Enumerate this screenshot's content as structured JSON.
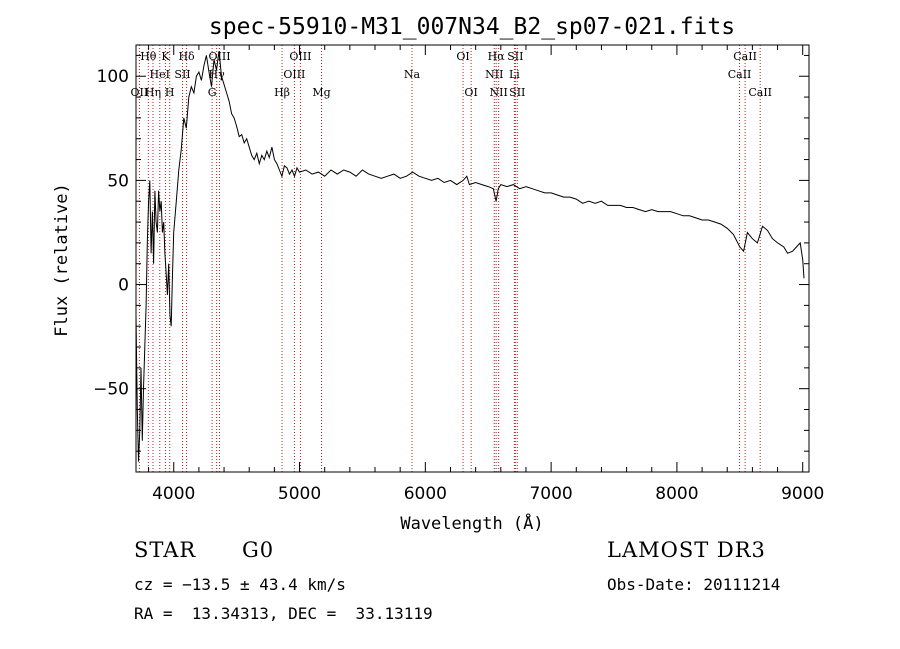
{
  "chart_data": {
    "type": "line",
    "title": "spec-55910-M31_007N34_B2_sp07-021.fits",
    "xlabel": "Wavelength (Å)",
    "ylabel": "Flux (relative)",
    "xlim": [
      3700,
      9050
    ],
    "ylim": [
      -90,
      115
    ],
    "xticks": [
      4000,
      5000,
      6000,
      7000,
      8000,
      9000
    ],
    "yticks": [
      -50,
      0,
      50,
      100
    ],
    "xtick_labels": [
      "4000",
      "5000",
      "6000",
      "7000",
      "8000",
      "9000"
    ],
    "ytick_labels": [
      "−50",
      "0",
      "50",
      "100"
    ],
    "grid": false,
    "line_color": "#000000",
    "marker_color": "#b22222",
    "spectrum": [
      [
        3700,
        -15
      ],
      [
        3710,
        -60
      ],
      [
        3720,
        -85
      ],
      [
        3730,
        -70
      ],
      [
        3740,
        -40
      ],
      [
        3750,
        -75
      ],
      [
        3760,
        -50
      ],
      [
        3770,
        -30
      ],
      [
        3780,
        -10
      ],
      [
        3790,
        20
      ],
      [
        3800,
        40
      ],
      [
        3810,
        50
      ],
      [
        3820,
        15
      ],
      [
        3830,
        35
      ],
      [
        3840,
        10
      ],
      [
        3850,
        45
      ],
      [
        3860,
        30
      ],
      [
        3870,
        25
      ],
      [
        3880,
        45
      ],
      [
        3890,
        35
      ],
      [
        3900,
        40
      ],
      [
        3910,
        25
      ],
      [
        3920,
        30
      ],
      [
        3930,
        15
      ],
      [
        3940,
        5
      ],
      [
        3950,
        -5
      ],
      [
        3960,
        10
      ],
      [
        3970,
        -15
      ],
      [
        3980,
        -20
      ],
      [
        3990,
        5
      ],
      [
        4000,
        25
      ],
      [
        4020,
        40
      ],
      [
        4040,
        55
      ],
      [
        4060,
        65
      ],
      [
        4080,
        80
      ],
      [
        4100,
        75
      ],
      [
        4120,
        90
      ],
      [
        4140,
        95
      ],
      [
        4160,
        92
      ],
      [
        4180,
        100
      ],
      [
        4200,
        102
      ],
      [
        4220,
        98
      ],
      [
        4240,
        105
      ],
      [
        4260,
        110
      ],
      [
        4280,
        102
      ],
      [
        4300,
        95
      ],
      [
        4320,
        108
      ],
      [
        4340,
        103
      ],
      [
        4360,
        112
      ],
      [
        4380,
        100
      ],
      [
        4400,
        96
      ],
      [
        4420,
        92
      ],
      [
        4440,
        88
      ],
      [
        4460,
        82
      ],
      [
        4480,
        80
      ],
      [
        4500,
        76
      ],
      [
        4520,
        71
      ],
      [
        4540,
        72
      ],
      [
        4560,
        68
      ],
      [
        4580,
        70
      ],
      [
        4600,
        66
      ],
      [
        4620,
        62
      ],
      [
        4640,
        60
      ],
      [
        4660,
        63
      ],
      [
        4680,
        58
      ],
      [
        4700,
        62
      ],
      [
        4720,
        60
      ],
      [
        4740,
        64
      ],
      [
        4760,
        61
      ],
      [
        4780,
        66
      ],
      [
        4800,
        60
      ],
      [
        4820,
        58
      ],
      [
        4840,
        55
      ],
      [
        4860,
        52
      ],
      [
        4880,
        57
      ],
      [
        4900,
        56
      ],
      [
        4920,
        53
      ],
      [
        4940,
        55
      ],
      [
        4960,
        52
      ],
      [
        4980,
        56
      ],
      [
        5000,
        54
      ],
      [
        5050,
        55
      ],
      [
        5100,
        53
      ],
      [
        5150,
        54
      ],
      [
        5200,
        52
      ],
      [
        5250,
        55
      ],
      [
        5300,
        53
      ],
      [
        5350,
        55
      ],
      [
        5400,
        54
      ],
      [
        5450,
        52
      ],
      [
        5500,
        55
      ],
      [
        5550,
        53
      ],
      [
        5600,
        52
      ],
      [
        5650,
        51
      ],
      [
        5700,
        52
      ],
      [
        5750,
        53
      ],
      [
        5800,
        51
      ],
      [
        5850,
        52
      ],
      [
        5900,
        54
      ],
      [
        5950,
        52
      ],
      [
        6000,
        51
      ],
      [
        6050,
        50
      ],
      [
        6100,
        51
      ],
      [
        6150,
        49
      ],
      [
        6200,
        50
      ],
      [
        6250,
        48
      ],
      [
        6300,
        50
      ],
      [
        6330,
        52
      ],
      [
        6350,
        48
      ],
      [
        6400,
        49
      ],
      [
        6450,
        48
      ],
      [
        6500,
        47
      ],
      [
        6540,
        46
      ],
      [
        6563,
        40
      ],
      [
        6580,
        46
      ],
      [
        6600,
        48
      ],
      [
        6650,
        47
      ],
      [
        6700,
        48
      ],
      [
        6750,
        46
      ],
      [
        6800,
        47
      ],
      [
        6850,
        46
      ],
      [
        6900,
        45
      ],
      [
        6950,
        44
      ],
      [
        7000,
        44
      ],
      [
        7050,
        43
      ],
      [
        7100,
        42
      ],
      [
        7150,
        42
      ],
      [
        7200,
        41
      ],
      [
        7250,
        39
      ],
      [
        7300,
        40
      ],
      [
        7350,
        39
      ],
      [
        7400,
        40
      ],
      [
        7450,
        38
      ],
      [
        7500,
        38
      ],
      [
        7550,
        38
      ],
      [
        7600,
        37
      ],
      [
        7650,
        37
      ],
      [
        7700,
        36
      ],
      [
        7750,
        35
      ],
      [
        7800,
        36
      ],
      [
        7850,
        35
      ],
      [
        7900,
        35
      ],
      [
        7950,
        35
      ],
      [
        8000,
        34
      ],
      [
        8050,
        33
      ],
      [
        8100,
        33
      ],
      [
        8150,
        32
      ],
      [
        8200,
        31
      ],
      [
        8250,
        31
      ],
      [
        8300,
        30
      ],
      [
        8350,
        29
      ],
      [
        8400,
        27
      ],
      [
        8450,
        24
      ],
      [
        8500,
        18
      ],
      [
        8530,
        16
      ],
      [
        8560,
        25
      ],
      [
        8600,
        22
      ],
      [
        8640,
        20
      ],
      [
        8680,
        28
      ],
      [
        8720,
        26
      ],
      [
        8760,
        22
      ],
      [
        8800,
        20
      ],
      [
        8850,
        18
      ],
      [
        8880,
        15
      ],
      [
        8920,
        16
      ],
      [
        8950,
        18
      ],
      [
        8980,
        20
      ],
      [
        9000,
        12
      ],
      [
        9010,
        3
      ]
    ],
    "line_markers": [
      {
        "label": "Hθ",
        "wave": 3798,
        "row": 1
      },
      {
        "label": "OII",
        "wave": 3727,
        "row": 3
      },
      {
        "label": "Hη",
        "wave": 3835,
        "row": 3
      },
      {
        "label": "HeI",
        "wave": 3889,
        "row": 2
      },
      {
        "label": "K",
        "wave": 3934,
        "row": 1
      },
      {
        "label": "H",
        "wave": 3968,
        "row": 3
      },
      {
        "label": "SII",
        "wave": 4070,
        "row": 2
      },
      {
        "label": "Hδ",
        "wave": 4102,
        "row": 1
      },
      {
        "label": "G",
        "wave": 4305,
        "row": 3
      },
      {
        "label": "Hγ",
        "wave": 4341,
        "row": 2
      },
      {
        "label": "OIII",
        "wave": 4364,
        "row": 1
      },
      {
        "label": "Hβ",
        "wave": 4861,
        "row": 3
      },
      {
        "label": "OIII",
        "wave": 4959,
        "row": 2
      },
      {
        "label": "OIII",
        "wave": 5007,
        "row": 1
      },
      {
        "label": "Mg",
        "wave": 5175,
        "row": 3
      },
      {
        "label": "Na",
        "wave": 5894,
        "row": 2
      },
      {
        "label": "OI",
        "wave": 6300,
        "row": 1
      },
      {
        "label": "OI",
        "wave": 6364,
        "row": 3
      },
      {
        "label": "NII",
        "wave": 6548,
        "row": 2
      },
      {
        "label": "Hα",
        "wave": 6563,
        "row": 1
      },
      {
        "label": "NII",
        "wave": 6583,
        "row": 3
      },
      {
        "label": "Li",
        "wave": 6708,
        "row": 2
      },
      {
        "label": "SII",
        "wave": 6716,
        "row": 1
      },
      {
        "label": "SII",
        "wave": 6731,
        "row": 3
      },
      {
        "label": "CaII",
        "wave": 8498,
        "row": 2
      },
      {
        "label": "CaII",
        "wave": 8542,
        "row": 1
      },
      {
        "label": "CaII",
        "wave": 8662,
        "row": 3
      }
    ]
  },
  "info": {
    "object_class": "STAR",
    "subclass": "G0",
    "survey": "LAMOST DR3",
    "redshift": "cz = −13.5 ± 43.4 km/s",
    "obs_date": "Obs-Date: 20111214",
    "coords": "RA =  13.34313, DEC =  33.13119"
  }
}
